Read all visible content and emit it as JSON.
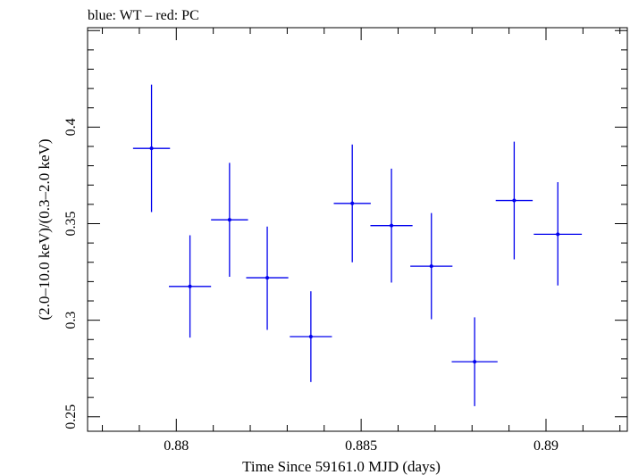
{
  "title": "blue: WT – red: PC",
  "xlabel": "Time Since 59161.0 MJD (days)",
  "ylabel": "(2.0–10.0 keV)/(0.3–2.0 keV)",
  "colors": {
    "series": "#0000ee",
    "axis": "#000000"
  },
  "chart_data": {
    "type": "scatter",
    "title": "blue: WT – red: PC",
    "xlabel": "Time Since 59161.0 MJD (days)",
    "ylabel": "(2.0–10.0 keV)/(0.3–2.0 keV)",
    "xlim": [
      0.8776,
      0.8922
    ],
    "ylim": [
      0.2425,
      0.4515
    ],
    "x_ticks": [
      0.88,
      0.885,
      0.89
    ],
    "x_tick_labels": [
      "0.88",
      "0.885",
      "0.89"
    ],
    "y_ticks": [
      0.25,
      0.3,
      0.35,
      0.4
    ],
    "y_tick_labels": [
      "0.25",
      "0.3",
      "0.35",
      "0.4"
    ],
    "grid": false,
    "series": [
      {
        "color": "#0000ee",
        "points": [
          {
            "x": 0.87933,
            "y": 0.389,
            "xerr": 0.0005,
            "yerr_low": 0.033,
            "yerr_high": 0.033
          },
          {
            "x": 0.88037,
            "y": 0.3175,
            "xerr": 0.00057,
            "yerr_low": 0.0265,
            "yerr_high": 0.0265
          },
          {
            "x": 0.88144,
            "y": 0.352,
            "xerr": 0.0005,
            "yerr_low": 0.0295,
            "yerr_high": 0.0295
          },
          {
            "x": 0.88246,
            "y": 0.322,
            "xerr": 0.00057,
            "yerr_low": 0.027,
            "yerr_high": 0.0265
          },
          {
            "x": 0.88364,
            "y": 0.2915,
            "xerr": 0.00057,
            "yerr_low": 0.0235,
            "yerr_high": 0.0235
          },
          {
            "x": 0.88476,
            "y": 0.3605,
            "xerr": 0.0005,
            "yerr_low": 0.0305,
            "yerr_high": 0.0305
          },
          {
            "x": 0.88582,
            "y": 0.349,
            "xerr": 0.00057,
            "yerr_low": 0.0295,
            "yerr_high": 0.0295
          },
          {
            "x": 0.8869,
            "y": 0.328,
            "xerr": 0.00057,
            "yerr_low": 0.0275,
            "yerr_high": 0.0275
          },
          {
            "x": 0.88807,
            "y": 0.2785,
            "xerr": 0.00062,
            "yerr_low": 0.023,
            "yerr_high": 0.023
          },
          {
            "x": 0.88914,
            "y": 0.362,
            "xerr": 0.0005,
            "yerr_low": 0.0305,
            "yerr_high": 0.0305
          },
          {
            "x": 0.89032,
            "y": 0.3445,
            "xerr": 0.00065,
            "yerr_low": 0.0265,
            "yerr_high": 0.027
          }
        ]
      }
    ]
  }
}
